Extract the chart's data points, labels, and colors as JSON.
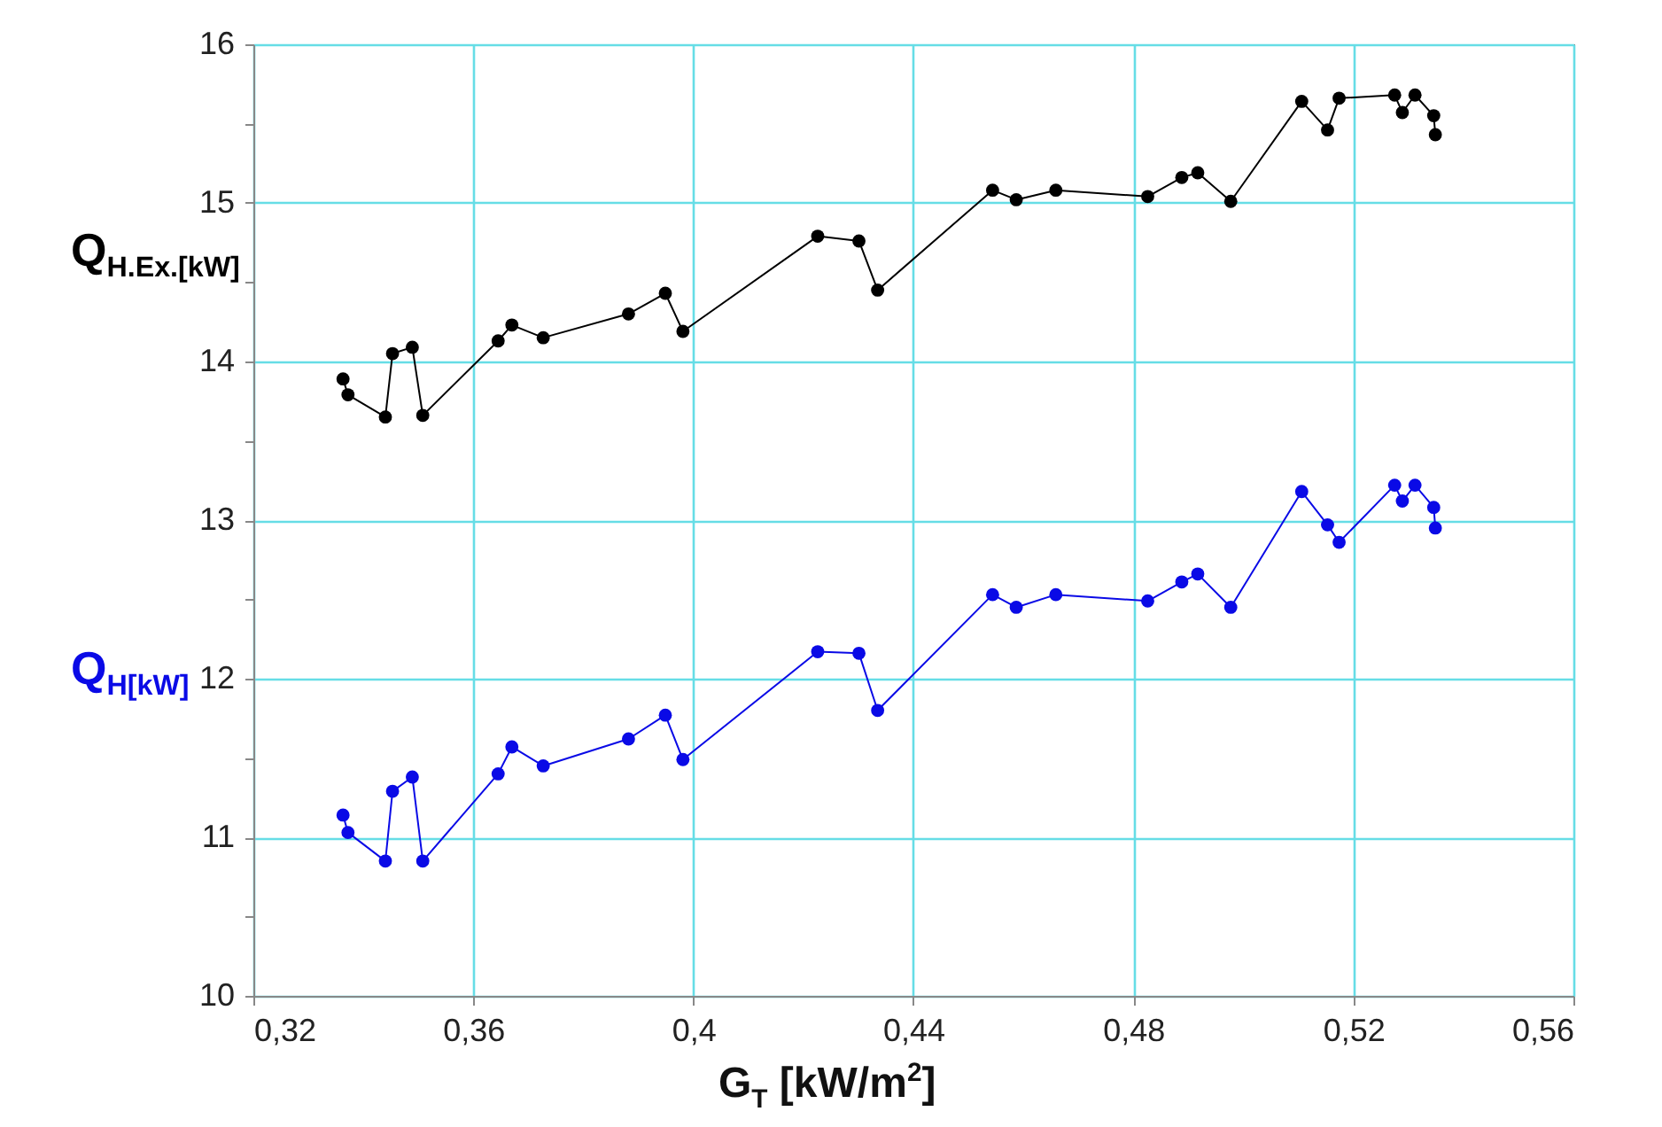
{
  "chart_data": {
    "type": "line",
    "xlabel": "G$_{T}$  [kW/m$^{2}$]",
    "x": [
      0.3363,
      0.3372,
      0.344,
      0.3453,
      0.3489,
      0.3508,
      0.3645,
      0.367,
      0.3727,
      0.3882,
      0.3949,
      0.3981,
      0.4226,
      0.4301,
      0.4335,
      0.4544,
      0.4587,
      0.4659,
      0.4826,
      0.4888,
      0.4917,
      0.4977,
      0.5106,
      0.5153,
      0.5174,
      0.5275,
      0.5289,
      0.5312,
      0.5346,
      0.5349
    ],
    "series": [
      {
        "name": "Q$_{H.Ex.[kW]}$",
        "color": "#000000",
        "values": [
          13.89,
          13.79,
          13.65,
          14.05,
          14.09,
          13.66,
          14.13,
          14.23,
          14.15,
          14.3,
          14.43,
          14.19,
          14.79,
          14.76,
          14.45,
          15.08,
          15.02,
          15.08,
          15.04,
          15.16,
          15.19,
          15.01,
          15.64,
          15.46,
          15.66,
          15.68,
          15.57,
          15.68,
          15.55,
          15.43
        ]
      },
      {
        "name": "Q$_{H[kW]}$",
        "color": "#0a0ae6",
        "values": [
          11.14,
          11.03,
          10.85,
          11.29,
          11.38,
          10.85,
          11.4,
          11.57,
          11.45,
          11.62,
          11.77,
          11.49,
          12.17,
          12.16,
          11.8,
          12.53,
          12.45,
          12.53,
          12.49,
          12.61,
          12.66,
          12.45,
          13.18,
          12.97,
          12.86,
          13.22,
          13.12,
          13.22,
          13.08,
          12.95
        ]
      }
    ],
    "xlim": [
      0.32,
      0.56
    ],
    "xticks": [
      {
        "value": 0.32,
        "label": "0,32"
      },
      {
        "value": 0.36,
        "label": "0,36"
      },
      {
        "value": 0.4,
        "label": "0,4"
      },
      {
        "value": 0.44,
        "label": "0,44"
      },
      {
        "value": 0.48,
        "label": "0,48"
      },
      {
        "value": 0.52,
        "label": "0,52"
      },
      {
        "value": 0.56,
        "label": "0,56"
      }
    ],
    "ylim": [
      10,
      16
    ],
    "yticks": [
      10,
      {
        "value": 10.5,
        "label": null
      },
      11,
      {
        "value": 11.5,
        "label": null
      },
      12,
      {
        "value": 12.5,
        "label": null
      },
      13,
      {
        "value": 13.5,
        "label": null
      },
      14,
      {
        "value": 14.5,
        "label": null
      },
      15,
      {
        "value": 15.5,
        "label": null
      },
      16
    ],
    "grid": true,
    "legend": false,
    "marker": "circle",
    "line_style": "solid"
  }
}
